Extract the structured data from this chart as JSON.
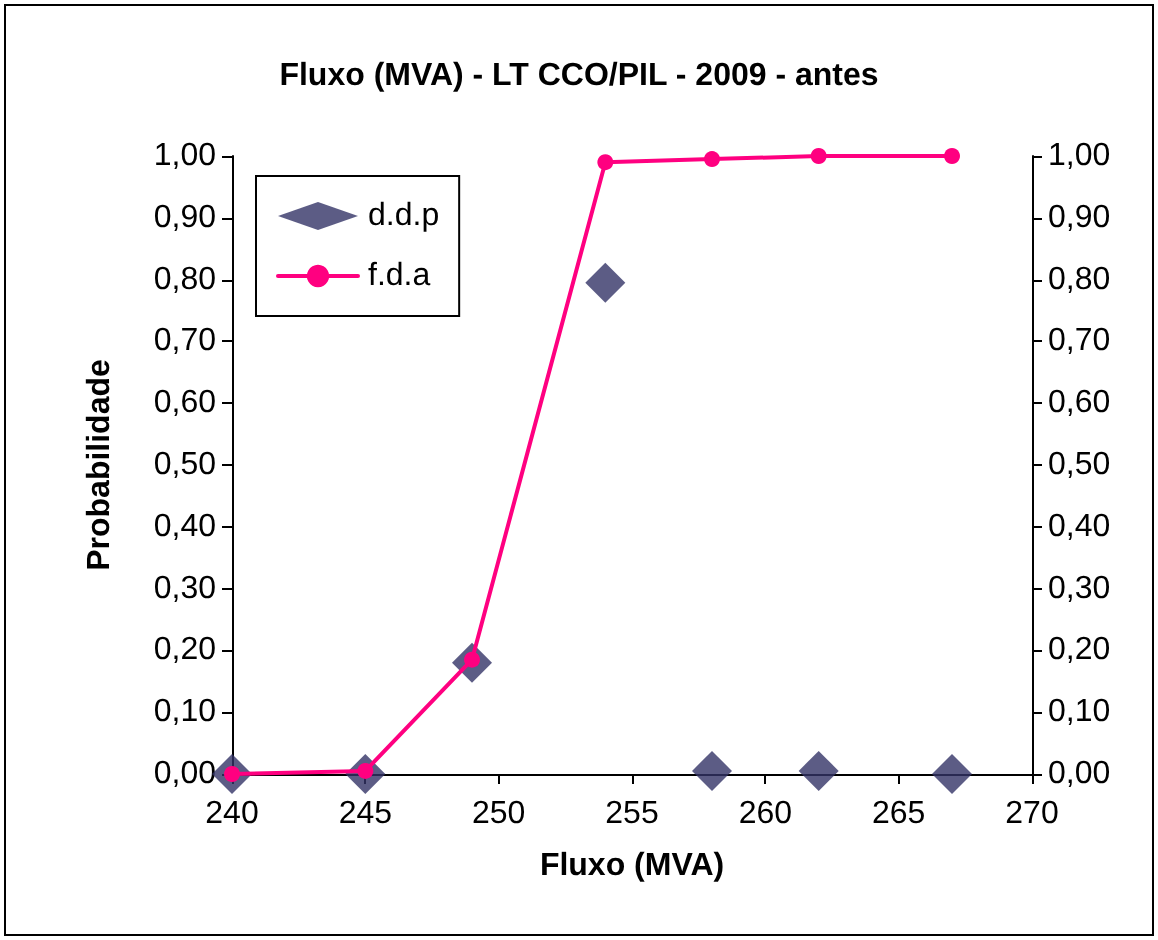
{
  "chart_data": {
    "type": "line",
    "title": "Fluxo (MVA) - LT CCO/PIL - 2009 - antes",
    "xlabel": "Fluxo (MVA)",
    "ylabel": "Probabilidade",
    "series": [
      {
        "name": "d.d.p",
        "type": "scatter",
        "marker": "diamond",
        "color": "#333366",
        "x": [
          240,
          245,
          249,
          254,
          258,
          262,
          267
        ],
        "values": [
          0,
          0,
          0.18,
          0.795,
          0.005,
          0.005,
          0
        ]
      },
      {
        "name": "f.d.a",
        "marker": "circle",
        "color": "#ff0080",
        "x": [
          240,
          245,
          249,
          254,
          258,
          262,
          267
        ],
        "values": [
          0,
          0.005,
          0.185,
          0.99,
          0.995,
          1,
          1
        ]
      }
    ],
    "xlim": [
      240,
      270
    ],
    "xticks": [
      240,
      245,
      250,
      255,
      260,
      265,
      270
    ],
    "ylim": [
      0,
      1
    ],
    "yticks": [
      {
        "value": 0,
        "label": "0,00"
      },
      {
        "value": 0.1,
        "label": "0,10"
      },
      {
        "value": 0.2,
        "label": "0,20"
      },
      {
        "value": 0.3,
        "label": "0,30"
      },
      {
        "value": 0.4,
        "label": "0,40"
      },
      {
        "value": 0.5,
        "label": "0,50"
      },
      {
        "value": 0.6,
        "label": "0,60"
      },
      {
        "value": 0.7,
        "label": "0,70"
      },
      {
        "value": 0.8,
        "label": "0,80"
      },
      {
        "value": 0.9,
        "label": "0,90"
      },
      {
        "value": 1,
        "label": "1,00"
      }
    ],
    "y2lim": [
      0,
      1
    ],
    "y2ticks": [
      {
        "value": 0,
        "label": "0,00"
      },
      {
        "value": 0.1,
        "label": "0,10"
      },
      {
        "value": 0.2,
        "label": "0,20"
      },
      {
        "value": 0.3,
        "label": "0,30"
      },
      {
        "value": 0.4,
        "label": "0,40"
      },
      {
        "value": 0.5,
        "label": "0,50"
      },
      {
        "value": 0.6,
        "label": "0,60"
      },
      {
        "value": 0.7,
        "label": "0,70"
      },
      {
        "value": 0.8,
        "label": "0,80"
      },
      {
        "value": 0.9,
        "label": "0,90"
      },
      {
        "value": 1,
        "label": "1,00"
      }
    ],
    "legend": "top left",
    "grid": false
  }
}
